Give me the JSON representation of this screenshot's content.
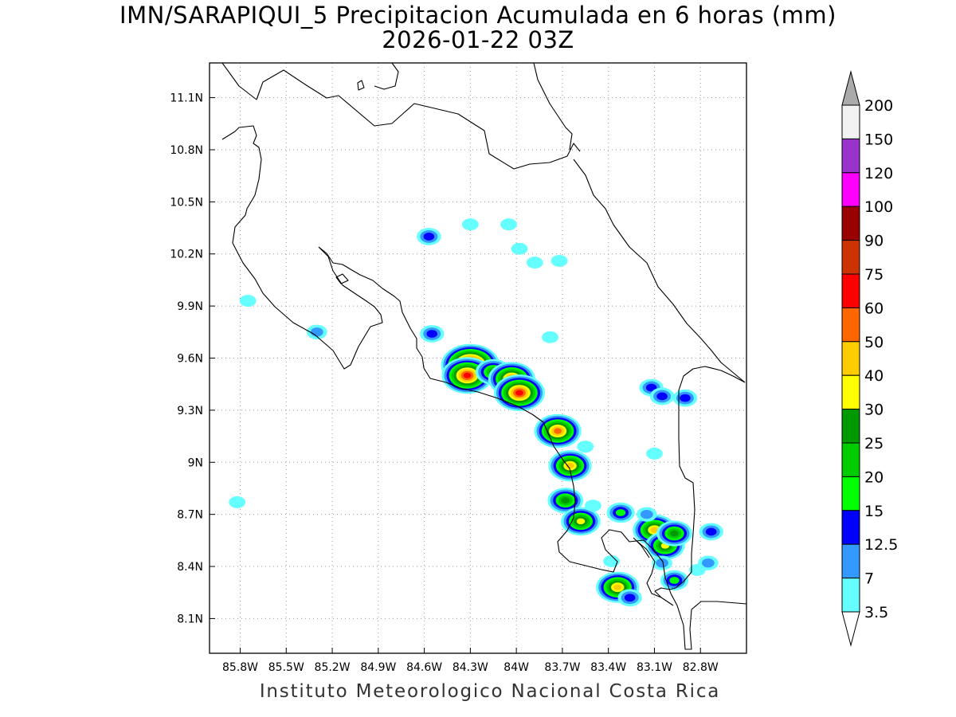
{
  "title": "IMN/SARAPIQUI_5 Precipitacion Acumulada en 6 horas (mm)",
  "subtitle": "2026-01-22 03Z",
  "credit": "Instituto Meteorologico Nacional Costa Rica",
  "map": {
    "lon_range": [
      -86.0,
      -82.5
    ],
    "lat_range": [
      7.9,
      11.3
    ],
    "lon_ticks": [
      "85.8W",
      "85.5W",
      "85.2W",
      "84.9W",
      "84.6W",
      "84.3W",
      "84W",
      "83.7W",
      "83.4W",
      "83.1W",
      "82.8W"
    ],
    "lon_values": [
      -85.8,
      -85.5,
      -85.2,
      -84.9,
      -84.6,
      -84.3,
      -84.0,
      -83.7,
      -83.4,
      -83.1,
      -82.8
    ],
    "lat_ticks": [
      "11.1N",
      "10.8N",
      "10.5N",
      "10.2N",
      "9.9N",
      "9.6N",
      "9.3N",
      "9N",
      "8.7N",
      "8.4N",
      "8.1N"
    ],
    "lat_values": [
      11.1,
      10.8,
      10.5,
      10.2,
      9.9,
      9.6,
      9.3,
      9.0,
      8.7,
      8.4,
      8.1
    ],
    "grid": true
  },
  "colorbar": {
    "labels": [
      "200",
      "150",
      "120",
      "100",
      "90",
      "75",
      "60",
      "50",
      "40",
      "30",
      "25",
      "20",
      "15",
      "12.5",
      "7",
      "3.5"
    ],
    "colors": [
      "#f2f2f2",
      "#9933cc",
      "#ff00ff",
      "#990000",
      "#cc3300",
      "#ff0000",
      "#ff6600",
      "#ffcc00",
      "#ffff00",
      "#009900",
      "#00cc00",
      "#00ff00",
      "#0000ff",
      "#3399ff",
      "#66ffff"
    ]
  },
  "colors": {
    "c1": "#66ffff",
    "c2": "#3399ff",
    "c3": "#0000ff",
    "c4": "#00ff00",
    "c5": "#00cc00",
    "c6": "#009900",
    "c7": "#ffff00",
    "c8": "#ffcc00",
    "c9": "#ff6600",
    "c10": "#ff0000",
    "c11": "#990000",
    "c12": "#ff00ff"
  },
  "precip_cells": [
    {
      "lon": -84.57,
      "lat": 10.3,
      "level": 3
    },
    {
      "lon": -84.3,
      "lat": 10.37,
      "level": 1
    },
    {
      "lon": -84.05,
      "lat": 10.37,
      "level": 1
    },
    {
      "lon": -83.98,
      "lat": 10.23,
      "level": 1
    },
    {
      "lon": -83.88,
      "lat": 10.15,
      "level": 1
    },
    {
      "lon": -83.72,
      "lat": 10.16,
      "level": 1
    },
    {
      "lon": -85.75,
      "lat": 9.93,
      "level": 1
    },
    {
      "lon": -85.3,
      "lat": 9.75,
      "level": 2
    },
    {
      "lon": -84.55,
      "lat": 9.74,
      "level": 3
    },
    {
      "lon": -83.78,
      "lat": 9.72,
      "level": 1
    },
    {
      "lon": -84.3,
      "lat": 9.56,
      "level": 12
    },
    {
      "lon": -84.32,
      "lat": 9.5,
      "level": 10
    },
    {
      "lon": -84.15,
      "lat": 9.52,
      "level": 6
    },
    {
      "lon": -84.03,
      "lat": 9.48,
      "level": 9
    },
    {
      "lon": -83.98,
      "lat": 9.4,
      "level": 10
    },
    {
      "lon": -83.73,
      "lat": 9.18,
      "level": 9
    },
    {
      "lon": -83.65,
      "lat": 8.98,
      "level": 8
    },
    {
      "lon": -83.68,
      "lat": 8.78,
      "level": 6
    },
    {
      "lon": -83.58,
      "lat": 8.66,
      "level": 7
    },
    {
      "lon": -83.32,
      "lat": 8.71,
      "level": 4
    },
    {
      "lon": -83.1,
      "lat": 8.61,
      "level": 8
    },
    {
      "lon": -83.03,
      "lat": 8.52,
      "level": 7
    },
    {
      "lon": -82.97,
      "lat": 8.59,
      "level": 6
    },
    {
      "lon": -82.97,
      "lat": 8.32,
      "level": 4
    },
    {
      "lon": -83.34,
      "lat": 8.28,
      "level": 8
    },
    {
      "lon": -83.26,
      "lat": 8.22,
      "level": 3
    },
    {
      "lon": -83.12,
      "lat": 9.43,
      "level": 3
    },
    {
      "lon": -83.05,
      "lat": 9.38,
      "level": 3
    },
    {
      "lon": -82.9,
      "lat": 9.37,
      "level": 3
    },
    {
      "lon": -82.73,
      "lat": 8.6,
      "level": 3
    },
    {
      "lon": -82.75,
      "lat": 8.42,
      "level": 2
    },
    {
      "lon": -82.82,
      "lat": 8.38,
      "level": 1
    },
    {
      "lon": -85.82,
      "lat": 8.77,
      "level": 1
    },
    {
      "lon": -83.38,
      "lat": 8.43,
      "level": 1
    },
    {
      "lon": -83.5,
      "lat": 8.75,
      "level": 1
    },
    {
      "lon": -83.15,
      "lat": 8.7,
      "level": 2
    },
    {
      "lon": -83.05,
      "lat": 8.42,
      "level": 2
    },
    {
      "lon": -83.55,
      "lat": 9.09,
      "level": 1
    },
    {
      "lon": -83.1,
      "lat": 9.05,
      "level": 1
    }
  ]
}
